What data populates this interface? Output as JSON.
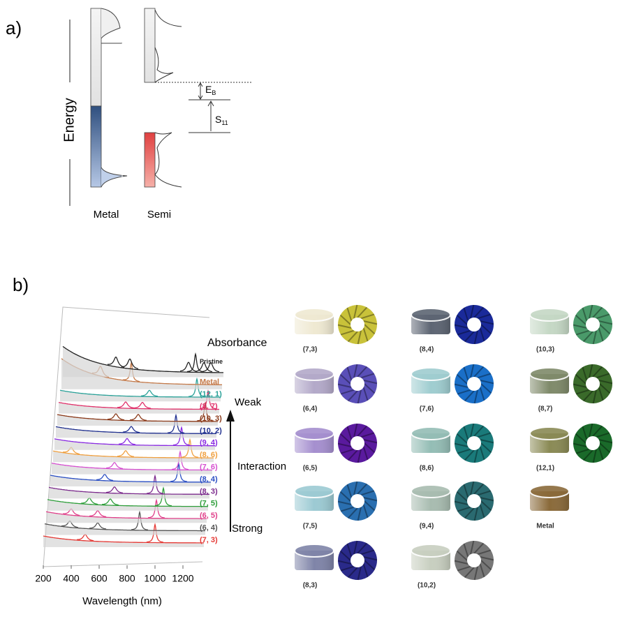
{
  "panel_a": {
    "label": "a)",
    "axis_label": "Energy",
    "columns": [
      "Metal",
      "Semi"
    ],
    "eb": {
      "symbol": "E",
      "subscript": "B"
    },
    "s11": {
      "symbol": "S",
      "subscript": "11"
    }
  },
  "panel_b_label": "b)",
  "chart_data": {
    "type": "line",
    "xlabel": "Wavelength (nm)",
    "ylabel": "Absorbance",
    "xlim": [
      200,
      1350
    ],
    "xticks": [
      200,
      400,
      600,
      800,
      1000,
      1200
    ],
    "annotations": {
      "weak": "Weak",
      "interaction": "Interaction",
      "strong": "Strong"
    },
    "series": [
      {
        "name": "(7, 3)",
        "color": "#e53935",
        "peaks": [
          1000,
          500
        ]
      },
      {
        "name": "(6, 4)",
        "color": "#555555",
        "peaks": [
          880,
          580,
          380
        ]
      },
      {
        "name": "(6, 5)",
        "color": "#e0408a",
        "peaks": [
          990,
          570,
          380
        ]
      },
      {
        "name": "(7, 5)",
        "color": "#2e9e3a",
        "peaks": [
          1030,
          650,
          500
        ]
      },
      {
        "name": "(8, 3)",
        "color": "#7b2a8c",
        "peaks": [
          960,
          670
        ]
      },
      {
        "name": "(8, 4)",
        "color": "#2b4fc4",
        "peaks": [
          1120,
          590
        ]
      },
      {
        "name": "(7, 6)",
        "color": "#d64fd0",
        "peaks": [
          1120,
          650
        ]
      },
      {
        "name": "(8, 6)",
        "color": "#f0a040",
        "peaks": [
          1180,
          720,
          330
        ]
      },
      {
        "name": "(9, 4)",
        "color": "#8a2be2",
        "peaks": [
          1110,
          720
        ]
      },
      {
        "name": "(10, 2)",
        "color": "#1f2f8f",
        "peaks": [
          1060,
          740
        ]
      },
      {
        "name": "(10, 3)",
        "color": "#8b3a1a",
        "peaks": [
          1260,
          780,
          620
        ]
      },
      {
        "name": "(8, 7)",
        "color": "#e0306a",
        "peaks": [
          1270,
          800,
          680
        ]
      },
      {
        "name": "(12, 1)",
        "color": "#2aa198",
        "peaks": [
          1180,
          840
        ]
      },
      {
        "name": "Metal",
        "color": "#c47a4a",
        "peaks": [
          700,
          480
        ]
      },
      {
        "name": "Pristine",
        "color": "#222222",
        "peaks": [
          1150,
          1210,
          1260,
          1100,
          680,
          580
        ]
      }
    ]
  },
  "tiles": [
    {
      "label": "(7,3)",
      "vial_color": "#efe9d2",
      "ring_color": "#c9c23a"
    },
    {
      "label": "(6,4)",
      "vial_color": "#b3a9c9",
      "ring_color": "#5a4fb8"
    },
    {
      "label": "(6,5)",
      "vial_color": "#a58fcf",
      "ring_color": "#5a1a9e"
    },
    {
      "label": "(7,5)",
      "vial_color": "#9ccad3",
      "ring_color": "#2a6fb0"
    },
    {
      "label": "(8,3)",
      "vial_color": "#7f84a8",
      "ring_color": "#2a2a8a"
    },
    {
      "label": "(8,4)",
      "vial_color": "#5d6573",
      "ring_color": "#1a2a9a"
    },
    {
      "label": "(7,6)",
      "vial_color": "#9fcdd0",
      "ring_color": "#1a6fc8"
    },
    {
      "label": "(8,6)",
      "vial_color": "#94bdb5",
      "ring_color": "#1a7a7a"
    },
    {
      "label": "(9,4)",
      "vial_color": "#a8bcb0",
      "ring_color": "#2a6a70"
    },
    {
      "label": "(10,2)",
      "vial_color": "#c8cfc0",
      "ring_color": "#777777"
    },
    {
      "label": "(10,3)",
      "vial_color": "#c5d8c5",
      "ring_color": "#4a9a6a"
    },
    {
      "label": "(8,7)",
      "vial_color": "#7f8a6a",
      "ring_color": "#3a6a2a"
    },
    {
      "label": "(12,1)",
      "vial_color": "#8a8a55",
      "ring_color": "#1a6a2a"
    },
    {
      "label": "Metal",
      "vial_color": "#8a6a3a"
    }
  ]
}
